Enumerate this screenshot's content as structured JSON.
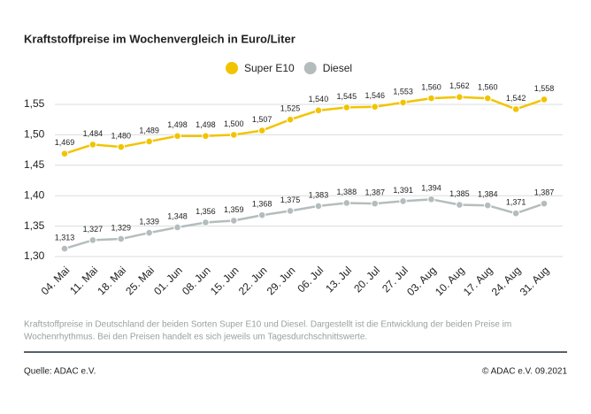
{
  "chart_data": {
    "type": "line",
    "title": "Kraftstoffpreise im Wochenvergleich in Euro/Liter",
    "categories": [
      "04. Mai",
      "11. Mai",
      "18. Mai",
      "25. Mai",
      "01. Jun",
      "08. Jun",
      "15. Jun",
      "22. Jun",
      "29. Jun",
      "06. Jul",
      "13. Jul",
      "20. Jul",
      "27. Jul",
      "03. Aug",
      "10. Aug",
      "17. Aug",
      "24. Aug",
      "31. Aug"
    ],
    "series": [
      {
        "name": "Super E10",
        "color": "#f2c400",
        "values": [
          1.469,
          1.484,
          1.48,
          1.489,
          1.498,
          1.498,
          1.5,
          1.507,
          1.525,
          1.54,
          1.545,
          1.546,
          1.553,
          1.56,
          1.562,
          1.56,
          1.542,
          1.558
        ],
        "value_labels": [
          "1,469",
          "1,484",
          "1,480",
          "1,489",
          "1,498",
          "1,498",
          "1,500",
          "1,507",
          "1,525",
          "1,540",
          "1,545",
          "1,546",
          "1,553",
          "1,560",
          "1,562",
          "1,560",
          "1,542",
          "1,558"
        ]
      },
      {
        "name": "Diesel",
        "color": "#b4bdbd",
        "values": [
          1.313,
          1.327,
          1.329,
          1.339,
          1.348,
          1.356,
          1.359,
          1.368,
          1.375,
          1.383,
          1.388,
          1.387,
          1.391,
          1.394,
          1.385,
          1.384,
          1.371,
          1.387
        ],
        "value_labels": [
          "1,313",
          "1,327",
          "1,329",
          "1,339",
          "1,348",
          "1,356",
          "1,359",
          "1,368",
          "1,375",
          "1,383",
          "1,388",
          "1,387",
          "1,391",
          "1,394",
          "1,385",
          "1,384",
          "1,371",
          "1,387"
        ]
      }
    ],
    "ylim": [
      1.29,
      1.57
    ],
    "yticks": [
      {
        "value": 1.3,
        "label": "1,30"
      },
      {
        "value": 1.35,
        "label": "1,35"
      },
      {
        "value": 1.4,
        "label": "1,40"
      },
      {
        "value": 1.45,
        "label": "1,45"
      },
      {
        "value": 1.5,
        "label": "1,50"
      },
      {
        "value": 1.55,
        "label": "1,55"
      }
    ],
    "grid": true,
    "legend": "top"
  },
  "notes": [
    "Kraftstoffpreise in Deutschland der beiden Sorten Super E10 und Diesel. Dargestellt ist die Entwicklung der beiden Preise im",
    "Wochenrhythmus. Bei den Preisen handelt es sich jeweils um Tagesdurchschnittswerte."
  ],
  "footer": {
    "source": "Quelle: ADAC e.V.",
    "copyright": "© ADAC e.V. 09.2021"
  }
}
